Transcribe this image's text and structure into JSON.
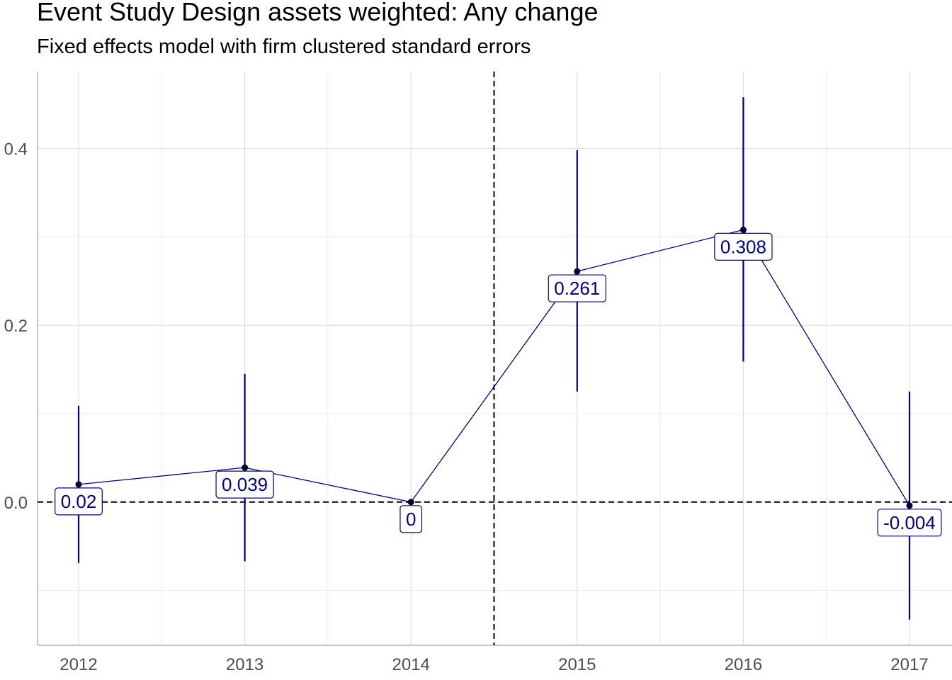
{
  "chart_data": {
    "type": "line",
    "title": "Event Study Design assets weighted: Any change",
    "subtitle": "Fixed effects model with firm clustered standard errors",
    "xlabel": "",
    "ylabel": "",
    "categories": [
      "2012",
      "2013",
      "2014",
      "2015",
      "2016",
      "2017"
    ],
    "series": [
      {
        "values": [
          0.02,
          0.039,
          0,
          0.261,
          0.308,
          -0.004
        ],
        "labels": [
          "0.02",
          "0.039",
          "0",
          "0.261",
          "0.308",
          "-0.004"
        ],
        "ci_lower": [
          -0.069,
          -0.067,
          0,
          0.125,
          0.159,
          -0.133
        ],
        "ci_upper": [
          0.109,
          0.145,
          0,
          0.398,
          0.458,
          0.125
        ]
      }
    ],
    "y_ticks": [
      0.0,
      0.2,
      0.4
    ],
    "y_tick_labels": [
      "0.0",
      "0.2",
      "0.4"
    ],
    "ylim": [
      -0.162,
      0.487
    ],
    "reference_lines": {
      "horizontal": 0,
      "vertical_between": [
        "2014",
        "2015"
      ]
    },
    "color": "#00008B",
    "grid": true,
    "legend": "none"
  }
}
